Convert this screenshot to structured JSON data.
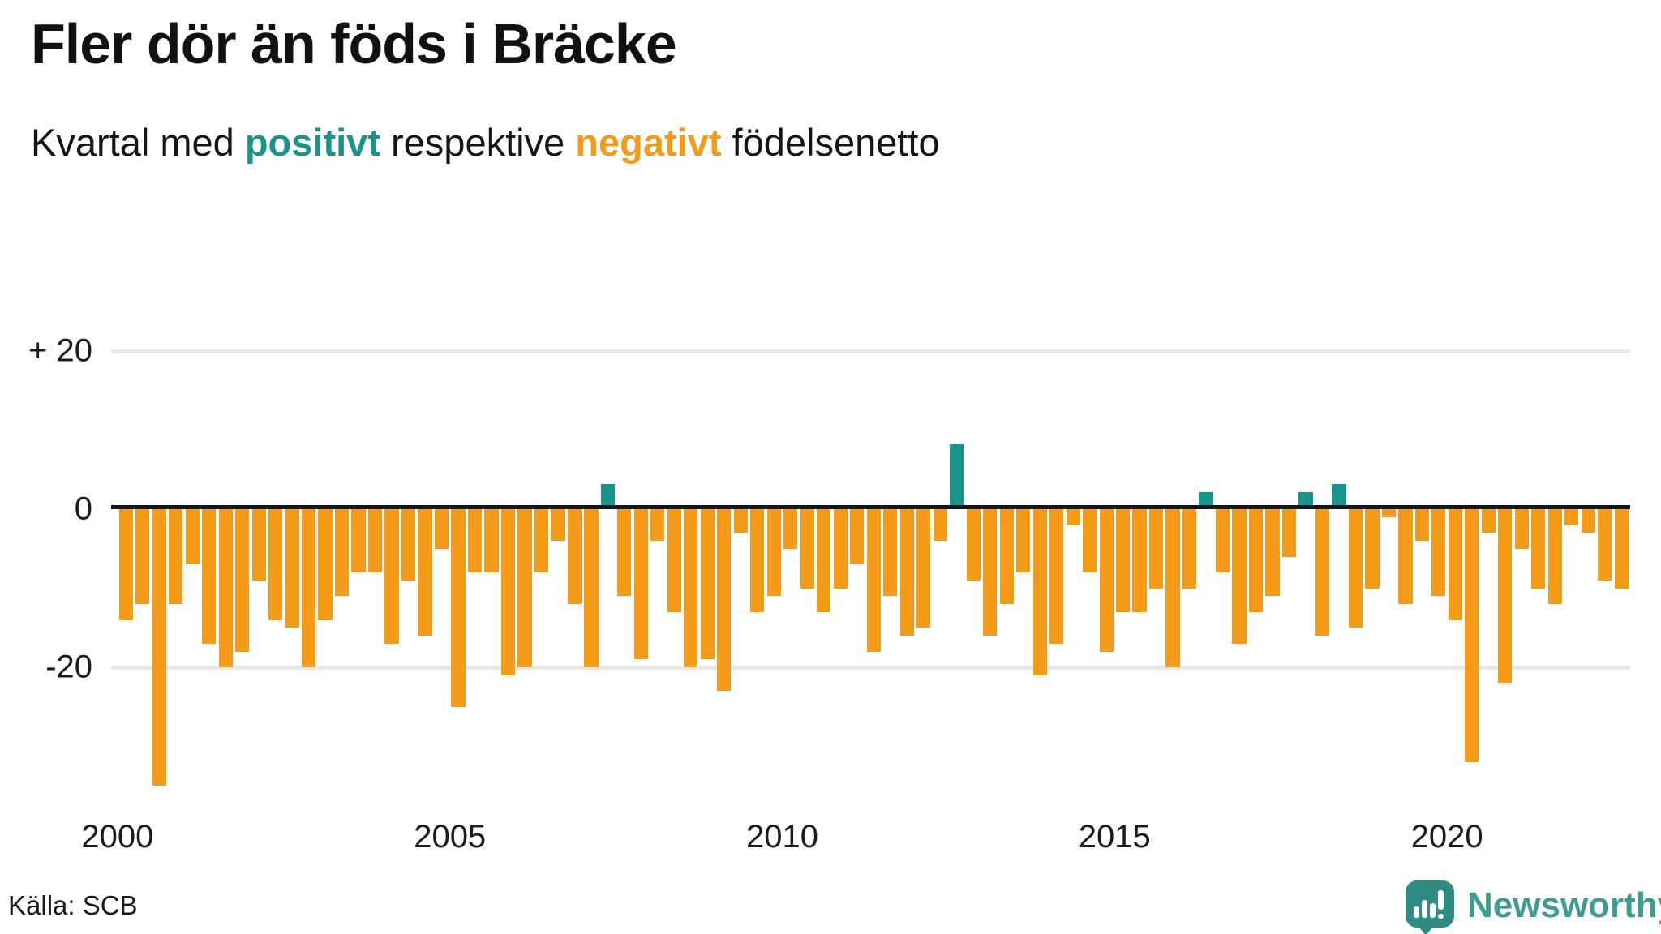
{
  "header": {
    "title": "Fler dör än föds i Bräcke",
    "subtitle_prefix": "Kvartal med ",
    "subtitle_positive_word": "positivt",
    "subtitle_middle": " respektive ",
    "subtitle_negative_word": "negativt",
    "subtitle_suffix": " födelsenetto"
  },
  "footer": {
    "source": "Källa: SCB",
    "logo_text": "Newsworthy",
    "logo_icon": "newsworthy-speech-bubble-chart-icon"
  },
  "colors": {
    "positive": "#18948B",
    "negative": "#F59B1A",
    "grid": "#E8E8EB",
    "axis": "#14141C",
    "logo_icon": "#2E8C82",
    "logo_text": "#3F9A90"
  },
  "chart_data": {
    "type": "bar",
    "title": "Fler dör än föds i Bräcke",
    "subtitle": "Kvartal med positivt respektive negativt födelsenetto",
    "legend": "none",
    "grid": "horizontal",
    "ylim": [
      -36,
      22
    ],
    "y_ticks": [
      {
        "label": "+ 20",
        "value": 20
      },
      {
        "label": "0",
        "value": 0
      },
      {
        "label": "-20",
        "value": -20
      }
    ],
    "x_ticks": [
      {
        "label": "2000",
        "year": 2000
      },
      {
        "label": "2005",
        "year": 2005
      },
      {
        "label": "2010",
        "year": 2010
      },
      {
        "label": "2015",
        "year": 2015
      },
      {
        "label": "2020",
        "year": 2020
      }
    ],
    "positive_color": "#18948B",
    "negative_color": "#F59B1A",
    "x": [
      "2000 Q1",
      "2000 Q2",
      "2000 Q3",
      "2000 Q4",
      "2001 Q1",
      "2001 Q2",
      "2001 Q3",
      "2001 Q4",
      "2002 Q1",
      "2002 Q2",
      "2002 Q3",
      "2002 Q4",
      "2003 Q1",
      "2003 Q2",
      "2003 Q3",
      "2003 Q4",
      "2004 Q1",
      "2004 Q2",
      "2004 Q3",
      "2004 Q4",
      "2005 Q1",
      "2005 Q2",
      "2005 Q3",
      "2005 Q4",
      "2006 Q1",
      "2006 Q2",
      "2006 Q3",
      "2006 Q4",
      "2007 Q1",
      "2007 Q2",
      "2007 Q3",
      "2007 Q4",
      "2008 Q1",
      "2008 Q2",
      "2008 Q3",
      "2008 Q4",
      "2009 Q1",
      "2009 Q2",
      "2009 Q3",
      "2009 Q4",
      "2010 Q1",
      "2010 Q2",
      "2010 Q3",
      "2010 Q4",
      "2011 Q1",
      "2011 Q2",
      "2011 Q3",
      "2011 Q4",
      "2012 Q1",
      "2012 Q2",
      "2012 Q3",
      "2012 Q4",
      "2013 Q1",
      "2013 Q2",
      "2013 Q3",
      "2013 Q4",
      "2014 Q1",
      "2014 Q2",
      "2014 Q3",
      "2014 Q4",
      "2015 Q1",
      "2015 Q2",
      "2015 Q3",
      "2015 Q4",
      "2016 Q1",
      "2016 Q2",
      "2016 Q3",
      "2016 Q4",
      "2017 Q1",
      "2017 Q2",
      "2017 Q3",
      "2017 Q4",
      "2018 Q1",
      "2018 Q2",
      "2018 Q3",
      "2018 Q4",
      "2019 Q1",
      "2019 Q2",
      "2019 Q3",
      "2019 Q4",
      "2020 Q1",
      "2020 Q2",
      "2020 Q3",
      "2020 Q4",
      "2021 Q1",
      "2021 Q2",
      "2021 Q3",
      "2021 Q4",
      "2022 Q1",
      "2022 Q2",
      "2022 Q3"
    ],
    "values": [
      -14,
      -12,
      -35,
      -12,
      -7,
      -17,
      -20,
      -18,
      -9,
      -14,
      -15,
      -20,
      -14,
      -11,
      -8,
      -8,
      -17,
      -9,
      -16,
      -5,
      -25,
      -8,
      -8,
      -21,
      -20,
      -8,
      -4,
      -12,
      -20,
      3,
      -11,
      -19,
      -4,
      -13,
      -20,
      -19,
      -23,
      -3,
      -13,
      -11,
      -5,
      -10,
      -13,
      -10,
      -7,
      -18,
      -11,
      -16,
      -15,
      -4,
      8,
      -9,
      -16,
      -12,
      -8,
      -21,
      -17,
      -2,
      -8,
      -18,
      -13,
      -13,
      -10,
      -20,
      -10,
      2,
      -8,
      -17,
      -13,
      -11,
      -6,
      2,
      -16,
      3,
      -15,
      -10,
      -1,
      -12,
      -4,
      -11,
      -14,
      -32,
      -3,
      -22,
      -5,
      -10,
      -12,
      -2,
      -3,
      -9,
      -10
    ]
  }
}
